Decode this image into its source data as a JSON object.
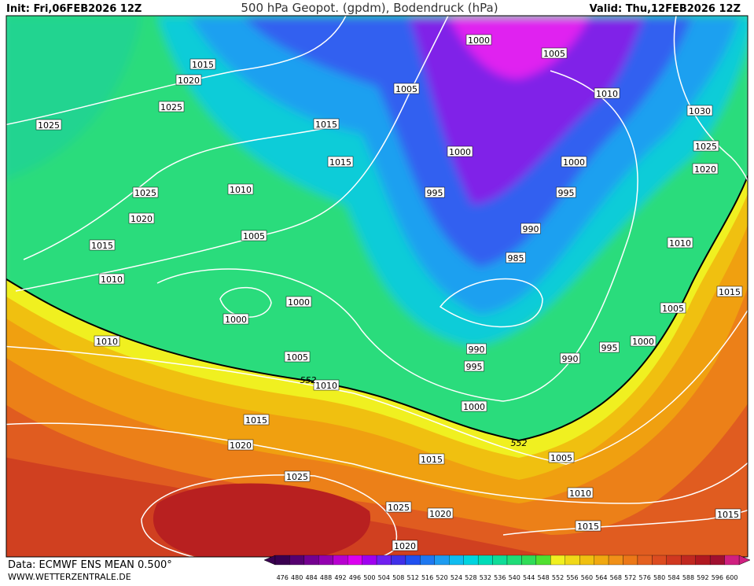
{
  "header": {
    "init": "Init: Fri,06FEB2026 12Z",
    "title": "500 hPa Geopot. (gpdm), Bodendruck (hPa)",
    "valid": "Valid: Thu,12FEB2026 12Z"
  },
  "footer": {
    "source": "Data: ECMWF ENS MEAN 0.500°",
    "website": "WWW.WETTERZENTRALE.DE"
  },
  "isobar_labels": [
    1015,
    1020,
    1025,
    1025,
    1025,
    1020,
    1015,
    1010,
    1010,
    1015,
    1015,
    1005,
    1000,
    1000,
    1005,
    1010,
    1010,
    1015,
    1020,
    1025,
    1025,
    1020,
    1020,
    1015,
    1000,
    1005,
    1005,
    1010,
    1000,
    995,
    1000,
    995,
    990,
    985,
    990,
    995,
    990,
    995,
    1000,
    1000,
    1005,
    1010,
    1015,
    1015,
    1005,
    1010,
    1015,
    1020,
    1025,
    1030
  ],
  "contour_labels": [
    552,
    552
  ],
  "colorbar": {
    "values": [
      476,
      480,
      484,
      488,
      492,
      496,
      500,
      504,
      508,
      512,
      516,
      520,
      524,
      528,
      532,
      536,
      540,
      544,
      548,
      552,
      556,
      560,
      564,
      568,
      572,
      576,
      580,
      584,
      588,
      592,
      596,
      600
    ],
    "colors": [
      "#3a0050",
      "#560070",
      "#740090",
      "#9400b0",
      "#b800d0",
      "#dc00f0",
      "#a000f0",
      "#7020f0",
      "#4030e8",
      "#2050f0",
      "#1e78f0",
      "#1e9cf0",
      "#10bcf0",
      "#00d4e0",
      "#00dcb8",
      "#10dc98",
      "#20dc78",
      "#30dc58",
      "#50e030",
      "#f0f020",
      "#f0d818",
      "#f0c010",
      "#f0a810",
      "#f09018",
      "#ec7818",
      "#e46020",
      "#dc4c20",
      "#d03820",
      "#c02820",
      "#b01820",
      "#a01030",
      "#d02080"
    ]
  }
}
